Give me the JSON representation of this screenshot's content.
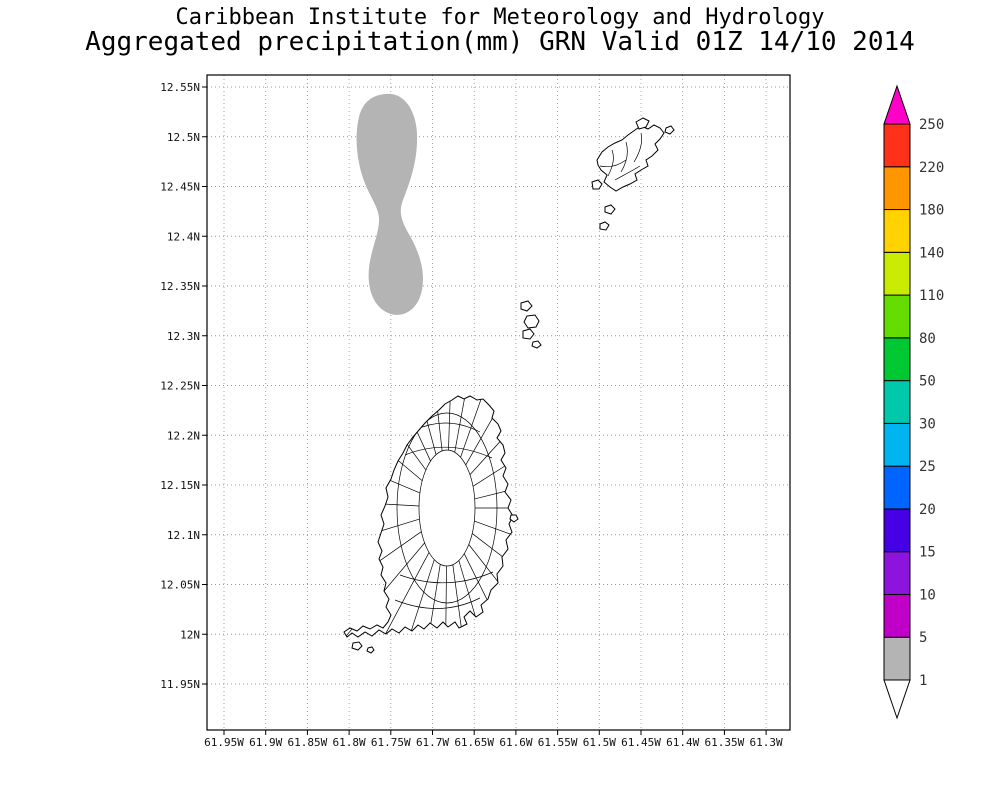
{
  "title": {
    "line1": "Caribbean Institute for Meteorology and Hydrology",
    "line2": "Aggregated precipitation(mm) GRN Valid 01Z 14/10 2014"
  },
  "chart_data": {
    "type": "map",
    "variable": "Aggregated precipitation (mm)",
    "region_code": "GRN",
    "valid_label": "Valid 01Z 14/10 2014",
    "x_ticks": [
      "61.95W",
      "61.9W",
      "61.85W",
      "61.8W",
      "61.75W",
      "61.7W",
      "61.65W",
      "61.6W",
      "61.55W",
      "61.5W",
      "61.45W",
      "61.4W",
      "61.35W",
      "61.3W"
    ],
    "y_ticks": [
      "12.55N",
      "12.5N",
      "12.45N",
      "12.4N",
      "12.35N",
      "12.3N",
      "12.25N",
      "12.2N",
      "12.15N",
      "12.1N",
      "12.05N",
      "12N",
      "11.95N"
    ],
    "grid_style": "dotted",
    "colorbar": {
      "orientation": "vertical",
      "labels_top_to_bottom": [
        "250",
        "220",
        "180",
        "140",
        "110",
        "80",
        "50",
        "30",
        "25",
        "20",
        "15",
        "10",
        "5",
        "1"
      ],
      "levels_low_to_high": [
        1,
        5,
        10,
        15,
        20,
        25,
        30,
        50,
        80,
        110,
        140,
        180,
        220,
        250
      ],
      "colors_low_to_high": [
        "#ffffff",
        "#b4b4b4",
        "#c000c8",
        "#8c14dc",
        "#4600e6",
        "#0064ff",
        "#00b4f0",
        "#00c8aa",
        "#00c832",
        "#64dc00",
        "#c8eb00",
        "#ffd200",
        "#ff9600",
        "#ff3219",
        "#ff00c8"
      ]
    },
    "shaded_data": [
      {
        "range_mm": "1-5",
        "color": "#b4b4b4",
        "description": "gray shaded precipitation area northwest of Grenada, approx 61.75-61.82W, 12.33-12.52N"
      }
    ]
  }
}
